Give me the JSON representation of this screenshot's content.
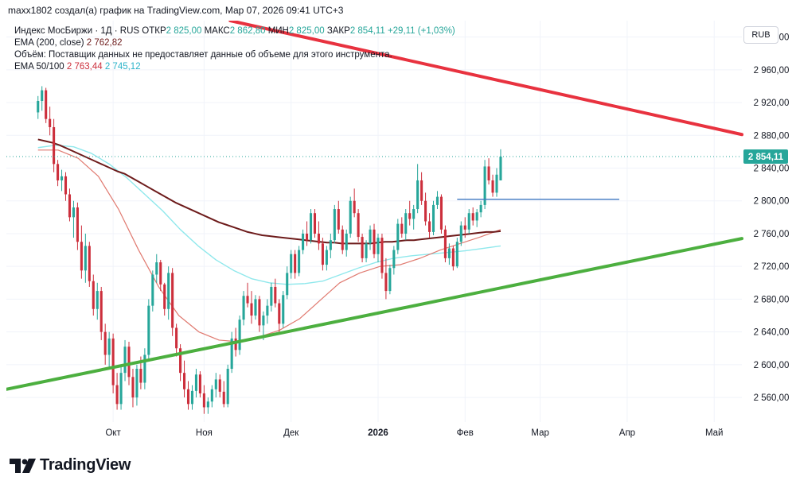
{
  "header": {
    "credit": "maxx1802 создал(а) график на TradingView.com, Мар 07, 2026 09:41 UTC+3"
  },
  "legend": {
    "symbol": "Индекс МосБиржи · 1Д · RUS",
    "open_label": "ОТКР",
    "open_value": "2 825,00",
    "high_label": "МАКС",
    "high_value": "2 862,80",
    "low_label": "МИН",
    "low_value": "2 825,00",
    "close_label": "ЗАКР",
    "close_value": "2 854,11",
    "change": "+29,11 (+1,03%)",
    "ema200_label": "EMA (200, close)",
    "ema200_value": "2 762,82",
    "volume_note": "Объём: Поставщик данных не предоставляет данные об объеме для этого инструмента.",
    "ema50_100_label": "EMA 50/100",
    "ema50_value": "2 763,44",
    "ema100_value": "2 745,12"
  },
  "currency_button": "RUB",
  "last_price_label": "2 854,11",
  "brand": "TradingView",
  "colors": {
    "up": "#26a69a",
    "down": "#cc2f3c",
    "ema200": "#6d1b1b",
    "ema50": "#e07a70",
    "ema100": "#8fe8ec",
    "resistance": "#e8323f",
    "support": "#4caf3f",
    "level": "#3f78c2"
  },
  "chart_data": {
    "type": "candlestick",
    "title": "Индекс МосБиржи · 1Д · RUS",
    "ylim": [
      2530,
      3020
    ],
    "yticks": [
      3000,
      2960,
      2920,
      2880,
      2840,
      2800,
      2760,
      2720,
      2680,
      2640,
      2600,
      2560
    ],
    "ytick_labels": [
      "3 000,00",
      "2 960,00",
      "2 920,00",
      "2 880,00",
      "2 840,00",
      "2 800,00",
      "2 760,00",
      "2 720,00",
      "2 680,00",
      "2 640,00",
      "2 600,00",
      "2 560,00"
    ],
    "xlim": [
      -8,
      178
    ],
    "xticks": [
      {
        "label": "Окт",
        "index": 19
      },
      {
        "label": "Ноя",
        "index": 42
      },
      {
        "label": "Дек",
        "index": 64
      },
      {
        "label": "2026",
        "index": 86
      },
      {
        "label": "Фев",
        "index": 108
      },
      {
        "label": "Мар",
        "index": 127
      },
      {
        "label": "Апр",
        "index": 149
      },
      {
        "label": "Май",
        "index": 171
      }
    ],
    "candles": [
      [
        2908,
        2928,
        2900,
        2922
      ],
      [
        2922,
        2940,
        2910,
        2935
      ],
      [
        2935,
        2938,
        2895,
        2900
      ],
      [
        2900,
        2915,
        2880,
        2890
      ],
      [
        2890,
        2900,
        2835,
        2845
      ],
      [
        2845,
        2850,
        2818,
        2825
      ],
      [
        2825,
        2838,
        2812,
        2830
      ],
      [
        2830,
        2835,
        2800,
        2808
      ],
      [
        2808,
        2815,
        2775,
        2780
      ],
      [
        2780,
        2800,
        2755,
        2792
      ],
      [
        2792,
        2798,
        2740,
        2750
      ],
      [
        2750,
        2770,
        2705,
        2715
      ],
      [
        2715,
        2760,
        2700,
        2745
      ],
      [
        2745,
        2750,
        2695,
        2702
      ],
      [
        2702,
        2710,
        2660,
        2668
      ],
      [
        2668,
        2700,
        2655,
        2690
      ],
      [
        2690,
        2695,
        2630,
        2640
      ],
      [
        2640,
        2650,
        2600,
        2612
      ],
      [
        2612,
        2640,
        2595,
        2632
      ],
      [
        2632,
        2638,
        2565,
        2575
      ],
      [
        2575,
        2590,
        2545,
        2552
      ],
      [
        2552,
        2600,
        2545,
        2590
      ],
      [
        2590,
        2630,
        2580,
        2622
      ],
      [
        2622,
        2628,
        2575,
        2585
      ],
      [
        2585,
        2595,
        2548,
        2560
      ],
      [
        2560,
        2600,
        2550,
        2595
      ],
      [
        2595,
        2610,
        2570,
        2578
      ],
      [
        2578,
        2620,
        2570,
        2612
      ],
      [
        2612,
        2680,
        2605,
        2672
      ],
      [
        2672,
        2715,
        2665,
        2710
      ],
      [
        2710,
        2735,
        2700,
        2725
      ],
      [
        2725,
        2728,
        2690,
        2698
      ],
      [
        2698,
        2700,
        2660,
        2668
      ],
      [
        2668,
        2720,
        2655,
        2712
      ],
      [
        2712,
        2718,
        2635,
        2645
      ],
      [
        2645,
        2650,
        2610,
        2620
      ],
      [
        2620,
        2625,
        2580,
        2590
      ],
      [
        2590,
        2605,
        2560,
        2570
      ],
      [
        2570,
        2580,
        2545,
        2552
      ],
      [
        2552,
        2575,
        2545,
        2568
      ],
      [
        2568,
        2595,
        2560,
        2588
      ],
      [
        2588,
        2592,
        2560,
        2565
      ],
      [
        2565,
        2575,
        2540,
        2548
      ],
      [
        2548,
        2560,
        2540,
        2555
      ],
      [
        2555,
        2575,
        2548,
        2570
      ],
      [
        2570,
        2590,
        2560,
        2582
      ],
      [
        2582,
        2588,
        2560,
        2567
      ],
      [
        2567,
        2580,
        2548,
        2552
      ],
      [
        2552,
        2600,
        2548,
        2595
      ],
      [
        2595,
        2640,
        2590,
        2632
      ],
      [
        2632,
        2645,
        2610,
        2618
      ],
      [
        2618,
        2660,
        2612,
        2655
      ],
      [
        2655,
        2690,
        2648,
        2684
      ],
      [
        2684,
        2700,
        2670,
        2675
      ],
      [
        2675,
        2690,
        2650,
        2660
      ],
      [
        2660,
        2685,
        2655,
        2680
      ],
      [
        2680,
        2684,
        2640,
        2648
      ],
      [
        2648,
        2665,
        2630,
        2660
      ],
      [
        2660,
        2680,
        2650,
        2672
      ],
      [
        2672,
        2700,
        2665,
        2695
      ],
      [
        2695,
        2705,
        2670,
        2675
      ],
      [
        2675,
        2680,
        2640,
        2650
      ],
      [
        2650,
        2690,
        2645,
        2685
      ],
      [
        2685,
        2720,
        2680,
        2712
      ],
      [
        2712,
        2740,
        2705,
        2735
      ],
      [
        2735,
        2740,
        2705,
        2712
      ],
      [
        2712,
        2745,
        2708,
        2740
      ],
      [
        2740,
        2765,
        2735,
        2760
      ],
      [
        2760,
        2775,
        2745,
        2752
      ],
      [
        2752,
        2790,
        2748,
        2785
      ],
      [
        2785,
        2790,
        2755,
        2760
      ],
      [
        2760,
        2775,
        2740,
        2748
      ],
      [
        2748,
        2755,
        2715,
        2722
      ],
      [
        2722,
        2745,
        2715,
        2740
      ],
      [
        2740,
        2760,
        2730,
        2752
      ],
      [
        2752,
        2795,
        2748,
        2790
      ],
      [
        2790,
        2800,
        2760,
        2765
      ],
      [
        2765,
        2770,
        2735,
        2740
      ],
      [
        2740,
        2765,
        2732,
        2760
      ],
      [
        2760,
        2805,
        2755,
        2800
      ],
      [
        2800,
        2815,
        2780,
        2785
      ],
      [
        2785,
        2790,
        2750,
        2756
      ],
      [
        2756,
        2760,
        2725,
        2730
      ],
      [
        2730,
        2752,
        2725,
        2748
      ],
      [
        2748,
        2770,
        2740,
        2765
      ],
      [
        2765,
        2772,
        2730,
        2735
      ],
      [
        2735,
        2760,
        2725,
        2755
      ],
      [
        2755,
        2760,
        2705,
        2712
      ],
      [
        2712,
        2730,
        2680,
        2690
      ],
      [
        2690,
        2722,
        2686,
        2718
      ],
      [
        2718,
        2745,
        2710,
        2740
      ],
      [
        2740,
        2778,
        2735,
        2772
      ],
      [
        2772,
        2780,
        2755,
        2760
      ],
      [
        2760,
        2790,
        2752,
        2785
      ],
      [
        2785,
        2800,
        2770,
        2778
      ],
      [
        2778,
        2795,
        2765,
        2790
      ],
      [
        2790,
        2845,
        2785,
        2825
      ],
      [
        2825,
        2835,
        2795,
        2800
      ],
      [
        2800,
        2810,
        2770,
        2775
      ],
      [
        2775,
        2785,
        2755,
        2762
      ],
      [
        2762,
        2800,
        2758,
        2795
      ],
      [
        2795,
        2812,
        2790,
        2805
      ],
      [
        2805,
        2808,
        2760,
        2765
      ],
      [
        2765,
        2770,
        2725,
        2730
      ],
      [
        2730,
        2748,
        2722,
        2742
      ],
      [
        2742,
        2745,
        2715,
        2720
      ],
      [
        2720,
        2755,
        2718,
        2750
      ],
      [
        2750,
        2775,
        2745,
        2770
      ],
      [
        2770,
        2780,
        2755,
        2765
      ],
      [
        2765,
        2790,
        2760,
        2785
      ],
      [
        2785,
        2792,
        2770,
        2776
      ],
      [
        2776,
        2790,
        2768,
        2786
      ],
      [
        2786,
        2800,
        2780,
        2795
      ],
      [
        2795,
        2850,
        2790,
        2842
      ],
      [
        2842,
        2852,
        2820,
        2825
      ],
      [
        2825,
        2832,
        2805,
        2810
      ],
      [
        2810,
        2840,
        2805,
        2832
      ],
      [
        2825,
        2863,
        2825,
        2854
      ]
    ],
    "ema200": [
      2875,
      2873,
      2871,
      2868,
      2864,
      2860,
      2856,
      2852,
      2848,
      2844,
      2840,
      2836,
      2833,
      2828,
      2823,
      2818,
      2813,
      2808,
      2803,
      2798,
      2794,
      2790,
      2786,
      2782,
      2778,
      2774,
      2771,
      2768,
      2765,
      2762,
      2760,
      2758,
      2757,
      2756,
      2755,
      2754,
      2753,
      2752,
      2751,
      2750,
      2749,
      2749,
      2748,
      2748,
      2748,
      2748,
      2748,
      2749,
      2750,
      2750,
      2751,
      2752,
      2752,
      2753,
      2754,
      2755,
      2756,
      2757,
      2758,
      2759,
      2760,
      2761,
      2762,
      2762,
      2763
    ],
    "ema100": [
      2865,
      2868,
      2866,
      2858,
      2845,
      2828,
      2808,
      2788,
      2765,
      2745,
      2728,
      2715,
      2705,
      2700,
      2698,
      2699,
      2702,
      2710,
      2718,
      2725,
      2730,
      2733,
      2735,
      2737,
      2739,
      2742,
      2745
    ],
    "ema50": [
      2862,
      2862,
      2852,
      2830,
      2790,
      2740,
      2695,
      2660,
      2640,
      2630,
      2628,
      2634,
      2642,
      2656,
      2678,
      2700,
      2712,
      2720,
      2722,
      2730,
      2740,
      2748,
      2756,
      2765
    ],
    "support_line": {
      "points": [
        [
          -8,
          2570
        ],
        [
          178,
          2754
        ]
      ]
    },
    "resistance_line": {
      "points": [
        [
          30,
          3040
        ],
        [
          178,
          2881
        ]
      ]
    },
    "horizontal_level": {
      "price": 2802,
      "from_index": 106,
      "to_index": 147
    },
    "last_price": 2854.11
  }
}
